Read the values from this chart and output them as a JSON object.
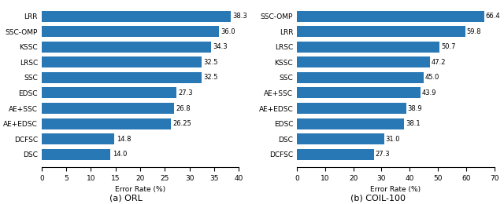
{
  "left": {
    "caption": "(a) ORL",
    "xlabel": "Error Rate (%)",
    "categories": [
      "LRR",
      "SSC-OMP",
      "KSSC",
      "LRSC",
      "SSC",
      "EDSC",
      "AE+SSC",
      "AE+EDSC",
      "DCFSC",
      "DSC"
    ],
    "values": [
      38.3,
      36.0,
      34.3,
      32.5,
      32.5,
      27.3,
      26.8,
      26.25,
      14.8,
      14.0
    ],
    "xlim": [
      0,
      40
    ],
    "xticks": [
      0,
      5,
      10,
      15,
      20,
      25,
      30,
      35,
      40
    ]
  },
  "right": {
    "caption": "(b) COIL-100",
    "xlabel": "Error Rate (%)",
    "categories": [
      "SSC-OMP",
      "LRR",
      "LRSC",
      "KSSC",
      "SSC",
      "AE+SSC",
      "AE+EDSC",
      "EDSC",
      "DSC",
      "DCFSC"
    ],
    "values": [
      66.4,
      59.8,
      50.7,
      47.2,
      45.0,
      43.9,
      38.9,
      38.1,
      31.0,
      27.3
    ],
    "xlim": [
      0,
      70
    ],
    "xticks": [
      0,
      10,
      20,
      30,
      40,
      50,
      60,
      70
    ]
  },
  "bar_color": "#2878b5",
  "bar_height": 0.72,
  "fontsize_label": 6.5,
  "fontsize_caption": 8,
  "fontsize_value": 6,
  "fontsize_tick": 6.5,
  "background_color": "#ffffff"
}
